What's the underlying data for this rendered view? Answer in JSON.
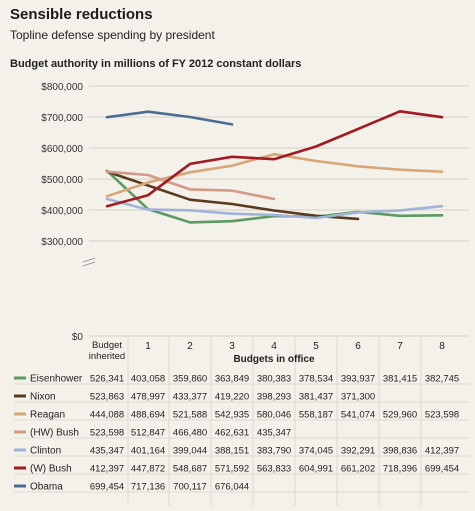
{
  "title": "Sensible reductions",
  "subtitle": "Topline defense spending by president",
  "axis_title": "Budget authority in millions of FY 2012 constant dollars",
  "chart_data": {
    "type": "line",
    "title": "Sensible reductions",
    "subtitle": "Topline defense spending by president",
    "ylabel": "Budget authority in millions of FY 2012 constant dollars",
    "xlabel": "Budgets in office",
    "categories": [
      "Budget inherited",
      "1",
      "2",
      "3",
      "4",
      "5",
      "6",
      "7",
      "8"
    ],
    "y_ticks": [
      "$0",
      "$300,000",
      "$400,000",
      "$500,000",
      "$600,000",
      "$700,000",
      "$800,000"
    ],
    "ylim": [
      0,
      800000
    ],
    "axis_break": "broken axis between $0 and $300,000",
    "grid": true,
    "series": [
      {
        "name": "Eisenhower",
        "color": "#5c9a63",
        "values": [
          526341,
          403058,
          359860,
          363849,
          380383,
          378534,
          393937,
          381415,
          382745
        ],
        "labels": [
          "526,341",
          "403,058",
          "359,860",
          "363,849",
          "380,383",
          "378,534",
          "393,937",
          "381,415",
          "382,745"
        ]
      },
      {
        "name": "Nixon",
        "color": "#5a3a1e",
        "values": [
          523863,
          478997,
          433377,
          419220,
          398293,
          381437,
          371300,
          null,
          null
        ],
        "labels": [
          "523,863",
          "478,997",
          "433,377",
          "419,220",
          "398,293",
          "381,437",
          "371,300",
          "",
          ""
        ]
      },
      {
        "name": "Reagan",
        "color": "#d8a778",
        "values": [
          444088,
          488694,
          521588,
          542935,
          580046,
          558187,
          541074,
          529960,
          523598
        ],
        "labels": [
          "444,088",
          "488,694",
          "521,588",
          "542,935",
          "580,046",
          "558,187",
          "541,074",
          "529,960",
          "523,598"
        ]
      },
      {
        "name": "(HW) Bush",
        "color": "#d49987",
        "values": [
          523598,
          512847,
          466480,
          462631,
          435347,
          null,
          null,
          null,
          null
        ],
        "labels": [
          "523,598",
          "512,847",
          "466,480",
          "462,631",
          "435,347",
          "",
          "",
          "",
          ""
        ]
      },
      {
        "name": "Clinton",
        "color": "#9fb4d8",
        "values": [
          435347,
          401164,
          399044,
          388151,
          383790,
          374045,
          392291,
          398836,
          412397
        ],
        "labels": [
          "435,347",
          "401,164",
          "399,044",
          "388,151",
          "383,790",
          "374,045",
          "392,291",
          "398,836",
          "412,397"
        ]
      },
      {
        "name": "(W) Bush",
        "color": "#a21a22",
        "values": [
          412397,
          447872,
          548687,
          571592,
          563833,
          604991,
          661202,
          718396,
          699454
        ],
        "labels": [
          "412,397",
          "447,872",
          "548,687",
          "571,592",
          "563,833",
          "604,991",
          "661,202",
          "718,396",
          "699,454"
        ]
      },
      {
        "name": "Obama",
        "color": "#4a6b96",
        "values": [
          699454,
          717136,
          700117,
          676044,
          null,
          null,
          null,
          null,
          null
        ],
        "labels": [
          "699,454",
          "717,136",
          "700,117",
          "676,044",
          "",
          "",
          "",
          "",
          ""
        ]
      }
    ]
  }
}
